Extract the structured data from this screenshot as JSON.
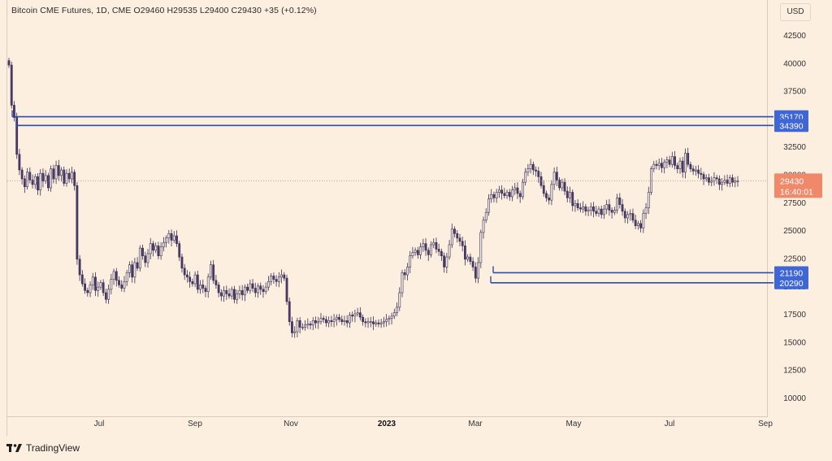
{
  "header": {
    "text": "Bitcoin CME Futures, 1D, CME  O29460  H29535  L29400  C29430  +35 (+0.12%)"
  },
  "currency_button": "USD",
  "footer": {
    "brand": "TradingView"
  },
  "chart_data": {
    "type": "candlestick",
    "symbol": "Bitcoin CME Futures",
    "interval": "1D",
    "exchange": "CME",
    "ohlc_last": {
      "open": 29460,
      "high": 29535,
      "low": 29400,
      "close": 29430,
      "change": "+35 (+0.12%)"
    },
    "y_axis": {
      "min": 10000,
      "max": 42500,
      "ticks": [
        "10000",
        "12500",
        "15000",
        "17500",
        "20000",
        "22500",
        "25000",
        "27500",
        "30000",
        "32500",
        "35000",
        "37500",
        "40000",
        "42500"
      ]
    },
    "x_axis": {
      "ticks": [
        "Jul",
        "Sep",
        "Nov",
        "2023",
        "Mar",
        "May",
        "Jul",
        "Sep"
      ]
    },
    "closes": [
      39800,
      36200,
      35100,
      31800,
      30400,
      29600,
      28900,
      30200,
      29500,
      29100,
      29800,
      28600,
      30100,
      29400,
      29900,
      28800,
      30500,
      29600,
      30800,
      29900,
      30400,
      29200,
      30100,
      29600,
      30200,
      29000,
      22400,
      21000,
      20200,
      19600,
      19400,
      20100,
      20800,
      19600,
      19900,
      20300,
      19400,
      18800,
      19700,
      20600,
      21300,
      20500,
      20100,
      19800,
      20400,
      21200,
      21900,
      20800,
      22100,
      21600,
      23400,
      22700,
      22100,
      22900,
      23800,
      23200,
      23600,
      22700,
      23500,
      23900,
      24300,
      24700,
      24100,
      24500,
      23800,
      22600,
      21600,
      21000,
      20800,
      20400,
      20200,
      21000,
      19700,
      20100,
      19800,
      19500,
      20800,
      21900,
      20500,
      20100,
      19400,
      19100,
      19600,
      19300,
      19100,
      19700,
      18800,
      19300,
      19600,
      19200,
      19900,
      19600,
      20200,
      19800,
      19400,
      20000,
      19700,
      19500,
      19900,
      20400,
      20900,
      20600,
      20400,
      20800,
      21000,
      20700,
      18600,
      16800,
      15800,
      15900,
      16900,
      16300,
      16300,
      16500,
      16600,
      16500,
      16900,
      16700,
      16800,
      17100,
      17000,
      16700,
      16900,
      16800,
      17000,
      17200,
      17000,
      16800,
      16900,
      16700,
      17400,
      17300,
      17500,
      17600,
      17200,
      16800,
      16700,
      16800,
      16800,
      16600,
      16700,
      16600,
      16700,
      16800,
      17000,
      17100,
      17300,
      17600,
      18100,
      19400,
      21200,
      21000,
      21700,
      22700,
      23000,
      23200,
      22800,
      23500,
      23800,
      23200,
      22800,
      23700,
      23900,
      23300,
      23100,
      22700,
      21700,
      22600,
      23700,
      25100,
      24700,
      24300,
      24000,
      23600,
      22400,
      22600,
      22200,
      21700,
      20700,
      22100,
      24800,
      25900,
      26600,
      27800,
      28200,
      27900,
      28400,
      28600,
      28300,
      28100,
      28400,
      28000,
      28600,
      28800,
      28300,
      28000,
      29300,
      30200,
      30500,
      30900,
      30400,
      30300,
      29800,
      29000,
      28300,
      27900,
      27700,
      29100,
      30200,
      29500,
      28800,
      29300,
      28500,
      27900,
      28400,
      27200,
      27400,
      27000,
      26900,
      27100,
      26700,
      26800,
      27100,
      26700,
      26500,
      26900,
      26400,
      26900,
      27300,
      26800,
      26600,
      26800,
      27900,
      27300,
      26700,
      26100,
      26400,
      26500,
      25900,
      25400,
      25600,
      25200,
      26500,
      27000,
      28400,
      30500,
      30900,
      30800,
      31000,
      30600,
      31100,
      31300,
      30900,
      31600,
      30800,
      30500,
      31200,
      30200,
      31900,
      30900,
      30500,
      30300,
      30400,
      30100,
      30000,
      29600,
      29700,
      29300,
      29400,
      29700,
      29600,
      29100,
      29300,
      29500,
      29200,
      29700,
      29300,
      29400,
      29430
    ]
  },
  "levels": [
    {
      "value": 35170,
      "label": "35170"
    },
    {
      "value": 34390,
      "label": "34390"
    },
    {
      "value": 21190,
      "label": "21190"
    },
    {
      "value": 20290,
      "label": "20290"
    }
  ],
  "last_price": {
    "label": "29430",
    "countdown": "16:40:01",
    "color": "#f0896a"
  },
  "colors": {
    "level_line": "#2b4ea8",
    "level_badge": "#3f66d6",
    "up_candle": "#f7f0e8",
    "down_candle": "#4b3a6a",
    "wick": "#3a2f52",
    "background": "#fdefe0"
  }
}
